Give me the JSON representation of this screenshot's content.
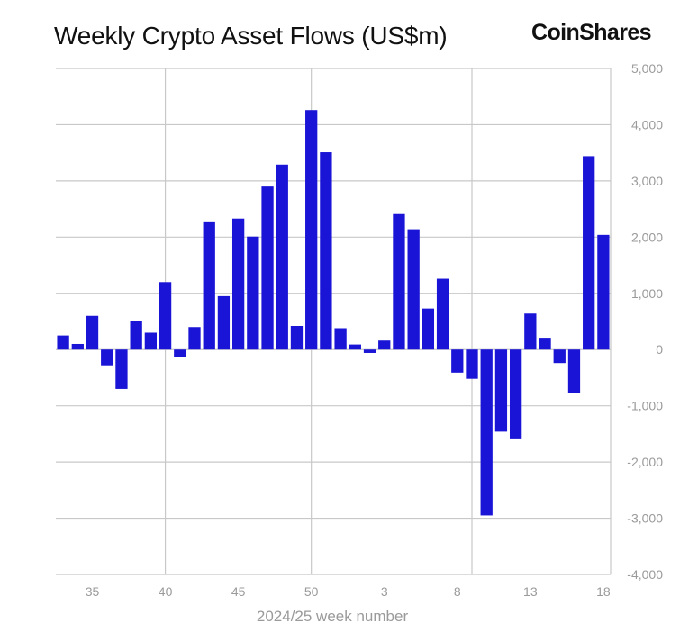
{
  "header": {
    "title": "Weekly Crypto Asset Flows (US$m)",
    "logo_text": "CoinShares"
  },
  "colors": {
    "bar": "#1a14d6",
    "grid": "#c8c8c8",
    "tick_text": "#9a9a9a"
  },
  "chart_data": {
    "type": "bar",
    "title": "Weekly Crypto Asset Flows (US$m)",
    "xlabel": "2024/25 week number",
    "ylabel": "",
    "ylim": [
      -4000,
      5000
    ],
    "y_ticks": [
      5000,
      4000,
      3000,
      2000,
      1000,
      0,
      -1000,
      -2000,
      -3000,
      -4000
    ],
    "y_tick_labels": [
      "5,000",
      "4,000",
      "3,000",
      "2,000",
      "1,000",
      "0",
      "-1,000",
      "-2,000",
      "-3,000",
      "-4,000"
    ],
    "x_tick_labels": [
      "35",
      "40",
      "45",
      "50",
      "3",
      "8",
      "13",
      "18"
    ],
    "grid": true,
    "categories": [
      "33",
      "34",
      "35",
      "36",
      "37",
      "38",
      "39",
      "40",
      "41",
      "42",
      "43",
      "44",
      "45",
      "46",
      "47",
      "48",
      "49",
      "50",
      "51",
      "52",
      "1",
      "2",
      "3",
      "4",
      "5",
      "6",
      "7",
      "8",
      "9",
      "10",
      "11",
      "12",
      "13",
      "14",
      "15",
      "16",
      "17",
      "18"
    ],
    "values": [
      250,
      100,
      600,
      -280,
      -700,
      500,
      300,
      1200,
      -130,
      400,
      2280,
      950,
      2330,
      2010,
      2900,
      3290,
      420,
      4260,
      3510,
      380,
      90,
      -60,
      160,
      2410,
      2140,
      730,
      1260,
      -410,
      -520,
      -2950,
      -1460,
      -1580,
      640,
      210,
      -240,
      -780,
      3440,
      2040
    ]
  }
}
